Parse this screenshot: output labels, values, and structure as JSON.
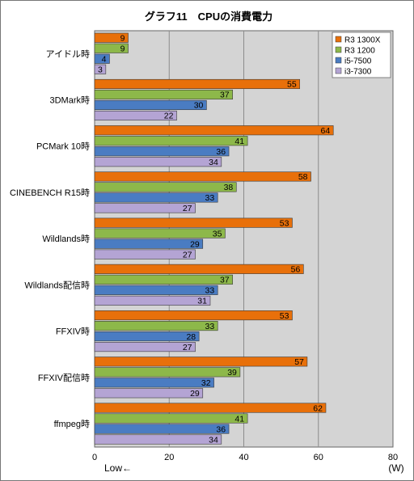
{
  "chart_data": {
    "type": "bar",
    "orientation": "horizontal",
    "title": "グラフ11　CPUの消費電力",
    "unit_label": "(W)",
    "direction_label": "Low←",
    "categories": [
      "アイドル時",
      "3DMark時",
      "PCMark 10時",
      "CINEBENCH R15時",
      "Wildlands時",
      "Wildlands配信時",
      "FFXIV時",
      "FFXIV配信時",
      "ffmpeg時"
    ],
    "series": [
      {
        "name": "R3 1300X",
        "color": "#e8700a",
        "values": [
          9,
          55,
          64,
          58,
          53,
          56,
          53,
          57,
          62
        ]
      },
      {
        "name": "R3 1200",
        "color": "#8db84a",
        "values": [
          9,
          37,
          41,
          38,
          35,
          37,
          33,
          39,
          41
        ]
      },
      {
        "name": "i5-7500",
        "color": "#4a7cc2",
        "values": [
          4,
          30,
          36,
          33,
          29,
          33,
          28,
          32,
          36
        ]
      },
      {
        "name": "i3-7300",
        "color": "#b4a4d4",
        "values": [
          3,
          22,
          34,
          27,
          27,
          31,
          27,
          29,
          34
        ]
      }
    ],
    "xlim": [
      0,
      80
    ],
    "xticks": [
      0,
      20,
      40,
      60,
      80
    ],
    "grid": true,
    "legend": "top-right",
    "colors": {
      "plot_background": "#d4d4d4",
      "grid": "#8c8c8c"
    }
  }
}
